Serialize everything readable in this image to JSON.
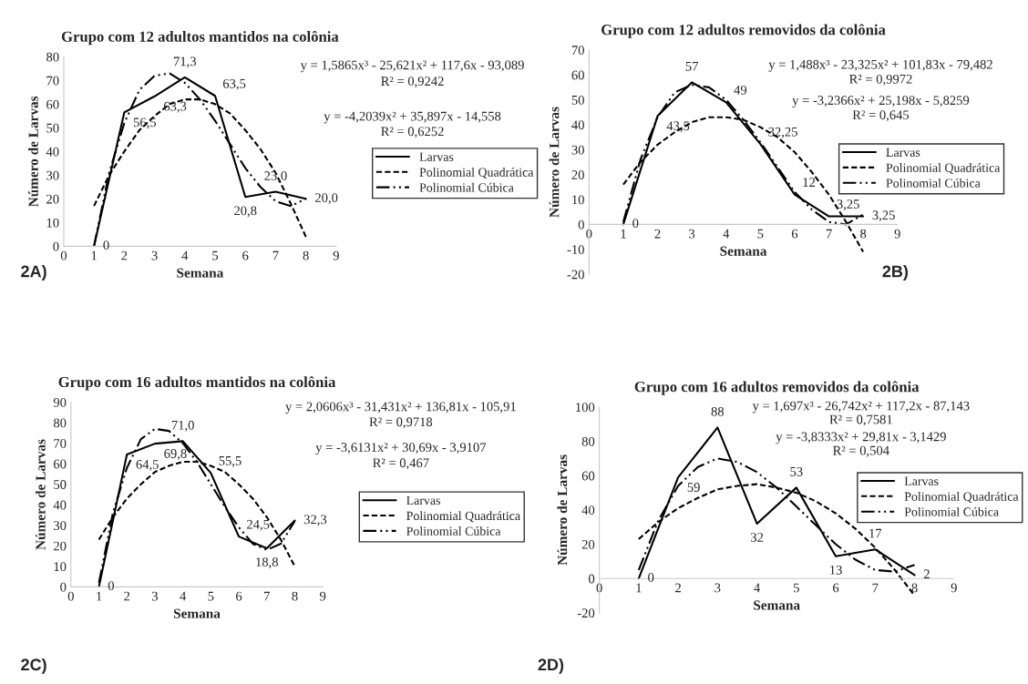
{
  "chart_data": [
    {
      "type": "line",
      "title": "Grupo com 12 adultos mantidos na colônia",
      "xlabel": "Semana",
      "ylabel": "Número de Larvas",
      "x": [
        1,
        2,
        3,
        4,
        5,
        6,
        7,
        8
      ],
      "xlim": [
        0,
        9
      ],
      "xticks": [
        0,
        1,
        2,
        3,
        4,
        5,
        6,
        7,
        8,
        9
      ],
      "ylim": [
        0,
        80
      ],
      "yticks": [
        0,
        10,
        20,
        30,
        40,
        50,
        60,
        70,
        80
      ],
      "grid": false,
      "legend": "right",
      "marker": "none",
      "series": [
        {
          "name": "Larvas",
          "color": "#000000",
          "line_style": "solid",
          "values": [
            0,
            56.5,
            63.3,
            71.3,
            63.5,
            20.8,
            23.0,
            20.0
          ],
          "value_labels": [
            "0",
            "56,5",
            "63,3",
            "71,3",
            "63,5",
            "20,8",
            "23,0",
            "20,0"
          ]
        },
        {
          "name": "Polinomial Quadrática",
          "color": "#000000",
          "line_style": "dashed",
          "x": [
            1,
            1.5,
            2,
            2.5,
            3,
            3.5,
            4,
            4.5,
            5,
            5.5,
            6,
            6.5,
            7,
            7.5,
            8
          ],
          "values": [
            17,
            30,
            40,
            49,
            55,
            60,
            62,
            62,
            60,
            56,
            49,
            41,
            31,
            18,
            4
          ]
        },
        {
          "name": "Polinomial Cúbica",
          "color": "#000000",
          "line_style": "dashdot",
          "x": [
            1,
            1.5,
            2,
            2.5,
            3,
            3.5,
            4,
            4.5,
            5,
            5.5,
            6,
            6.5,
            7,
            7.5,
            8
          ],
          "values": [
            0,
            31,
            52,
            66,
            72,
            73,
            69,
            62,
            53,
            43,
            33,
            25,
            19,
            17,
            20
          ]
        }
      ],
      "annotations": [
        "y = 1,5865x³ - 25,621x² + 117,6x - 93,089",
        "R² = 0,9242",
        "y = -4,2039x² + 35,897x - 14,558",
        "R² = 0,6252",
        "2A)"
      ]
    },
    {
      "type": "line",
      "title": "Grupo com 12 adultos removidos da colônia",
      "xlabel": "Semana",
      "ylabel": "Número de Larvas",
      "x": [
        1,
        2,
        3,
        4,
        5,
        6,
        7,
        8
      ],
      "xlim": [
        0,
        9
      ],
      "xticks": [
        0,
        1,
        2,
        3,
        4,
        5,
        6,
        7,
        8,
        9
      ],
      "ylim": [
        -20,
        70
      ],
      "yticks": [
        -20,
        -10,
        0,
        10,
        20,
        30,
        40,
        50,
        60,
        70
      ],
      "grid": false,
      "legend": "right",
      "marker": "none",
      "series": [
        {
          "name": "Larvas",
          "color": "#000000",
          "line_style": "solid",
          "values": [
            0,
            43.5,
            57,
            49,
            32.25,
            12,
            3.25,
            3.25
          ],
          "value_labels": [
            "0",
            "43,5",
            "57",
            "49",
            "32,25",
            "12",
            "3,25",
            "3,25"
          ]
        },
        {
          "name": "Polinomial Quadrática",
          "color": "#000000",
          "line_style": "dashed",
          "x": [
            1,
            1.5,
            2,
            2.5,
            3,
            3.5,
            4,
            4.5,
            5,
            5.5,
            6,
            6.5,
            7,
            7.5,
            8
          ],
          "values": [
            16,
            25,
            32,
            37,
            41,
            43,
            43,
            42,
            39,
            35,
            29,
            21,
            12,
            1,
            -11
          ]
        },
        {
          "name": "Polinomial Cúbica",
          "color": "#000000",
          "line_style": "dashdot",
          "x": [
            1,
            1.5,
            2,
            2.5,
            3,
            3.5,
            4,
            4.5,
            5,
            5.5,
            6,
            6.5,
            7,
            7.5,
            8
          ],
          "values": [
            1,
            26,
            43,
            53,
            56,
            55,
            50,
            42,
            33,
            23,
            13,
            6,
            1,
            0,
            4
          ]
        }
      ],
      "annotations": [
        "y = 1,488x³ - 23,325x² + 101,83x - 79,482",
        "R² = 0,9972",
        "y = -3,2366x² + 25,198x - 5,8259",
        "R² = 0,645",
        "2B)"
      ]
    },
    {
      "type": "line",
      "title": "Grupo com 16 adultos mantidos na colônia",
      "xlabel": "Semana",
      "ylabel": "Número de Larvas",
      "x": [
        1,
        2,
        3,
        4,
        5,
        6,
        7,
        8
      ],
      "xlim": [
        0,
        9
      ],
      "xticks": [
        0,
        1,
        2,
        3,
        4,
        5,
        6,
        7,
        8,
        9
      ],
      "ylim": [
        0,
        90
      ],
      "yticks": [
        0,
        10,
        20,
        30,
        40,
        50,
        60,
        70,
        80,
        90
      ],
      "grid": false,
      "legend": "right",
      "marker": "none",
      "series": [
        {
          "name": "Larvas",
          "color": "#000000",
          "line_style": "solid",
          "values": [
            0,
            64.5,
            69.8,
            71.0,
            55.5,
            24.5,
            18.8,
            32.3
          ],
          "value_labels": [
            "0",
            "64,5",
            "69,8",
            "71,0",
            "55,5",
            "24,5",
            "18,8",
            "32,3"
          ]
        },
        {
          "name": "Polinomial Quadrática",
          "color": "#000000",
          "line_style": "dashed",
          "x": [
            1,
            1.5,
            2,
            2.5,
            3,
            3.5,
            4,
            4.5,
            5,
            5.5,
            6,
            6.5,
            7,
            7.5,
            8
          ],
          "values": [
            23,
            34,
            43,
            50,
            56,
            59,
            61,
            61,
            59,
            56,
            50,
            43,
            34,
            23,
            10
          ]
        },
        {
          "name": "Polinomial Cúbica",
          "color": "#000000",
          "line_style": "dashdot",
          "x": [
            1,
            1.5,
            2,
            2.5,
            3,
            3.5,
            4,
            4.5,
            5,
            5.5,
            6,
            6.5,
            7,
            7.5,
            8
          ],
          "values": [
            2,
            36,
            58,
            72,
            77,
            76,
            70,
            61,
            50,
            39,
            29,
            21,
            18,
            21,
            32
          ]
        }
      ],
      "annotations": [
        "y = 2,0606x³ - 31,431x² + 136,81x - 105,91",
        "R² = 0,9718",
        "y = -3,6131x² + 30,69x - 3,9107",
        "R² = 0,467",
        "2C)"
      ]
    },
    {
      "type": "line",
      "title": "Grupo com 16 adultos removidos da colônia",
      "xlabel": "Semana",
      "ylabel": "Número de Larvas",
      "x": [
        1,
        2,
        3,
        4,
        5,
        6,
        7,
        8
      ],
      "xlim": [
        0,
        9
      ],
      "xticks": [
        0,
        1,
        2,
        3,
        4,
        5,
        6,
        7,
        8,
        9
      ],
      "ylim": [
        -20,
        100
      ],
      "yticks": [
        -20,
        0,
        20,
        40,
        60,
        80,
        100
      ],
      "grid": false,
      "legend": "top right",
      "marker": "none",
      "series": [
        {
          "name": "Larvas",
          "color": "#000000",
          "line_style": "solid",
          "values": [
            0,
            59,
            88,
            32,
            53,
            13,
            17,
            2
          ],
          "value_labels": [
            "0",
            "59",
            "88",
            "32",
            "53",
            "13",
            "17",
            "2"
          ]
        },
        {
          "name": "Polinomial Quadrática",
          "color": "#000000",
          "line_style": "dashed",
          "x": [
            1,
            1.5,
            2,
            2.5,
            3,
            3.5,
            4,
            4.5,
            5,
            5.5,
            6,
            6.5,
            7,
            7.5,
            8
          ],
          "values": [
            23,
            33,
            41,
            47,
            52,
            54,
            55,
            53,
            50,
            45,
            38,
            29,
            18,
            5,
            -10
          ]
        },
        {
          "name": "Polinomial Cúbica",
          "color": "#000000",
          "line_style": "dashdot",
          "x": [
            1,
            1.5,
            2,
            2.5,
            3,
            3.5,
            4,
            4.5,
            5,
            5.5,
            6,
            6.5,
            7,
            7.5,
            8
          ],
          "values": [
            5,
            34,
            54,
            65,
            70,
            68,
            62,
            53,
            42,
            31,
            20,
            11,
            5,
            4,
            8
          ]
        }
      ],
      "annotations": [
        "y = 1,697x³ - 26,742x² + 117,2x - 87,143",
        "R² = 0,7581",
        "y = -3,8333x² + 29,81x - 3,1429",
        "R² = 0,504",
        "2D)"
      ]
    }
  ]
}
